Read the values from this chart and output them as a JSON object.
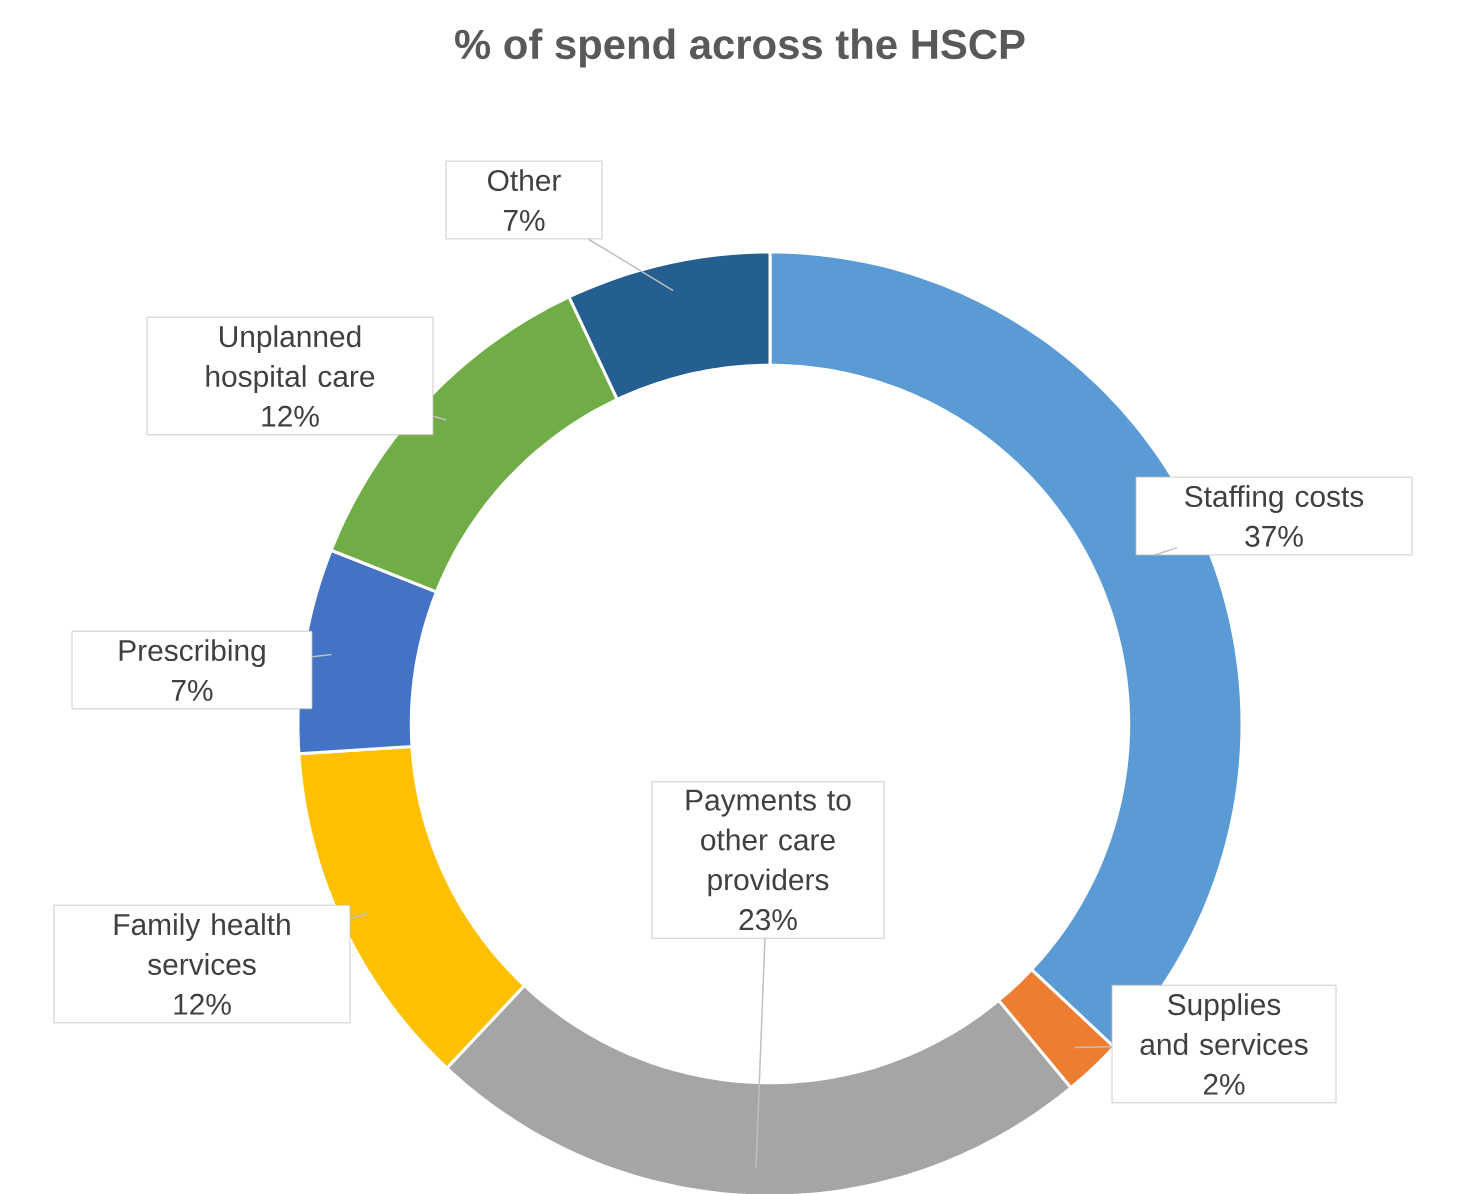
{
  "chart_data": {
    "type": "donut",
    "title": "% of spend across the HSCP",
    "categories": [
      "Staffing costs",
      "Supplies and services",
      "Payments to other care providers",
      "Family health services",
      "Prescribing",
      "Unplanned hospital care",
      "Other"
    ],
    "values": [
      37,
      2,
      23,
      12,
      7,
      12,
      7
    ],
    "value_labels": [
      "37%",
      "2%",
      "23%",
      "12%",
      "7%",
      "12%",
      "7%"
    ],
    "colors": [
      "#5b9bd5",
      "#ed7d31",
      "#a5a5a5",
      "#ffc000",
      "#4472c4",
      "#70ad47",
      "#255e91"
    ]
  }
}
